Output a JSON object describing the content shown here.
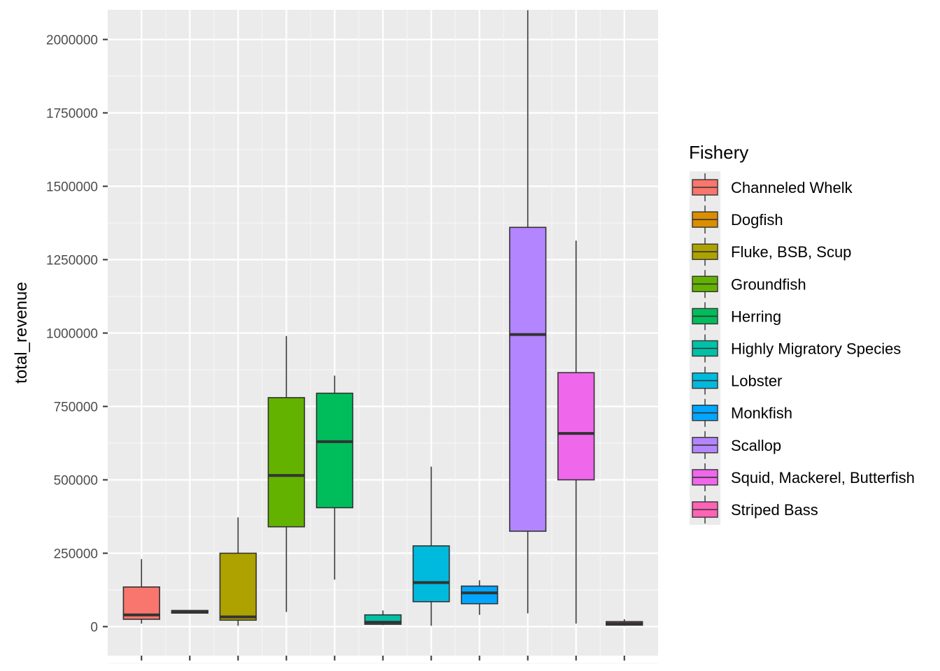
{
  "chart_data": {
    "type": "boxplot",
    "title": "",
    "xlabel": "",
    "ylabel": "total_revenue",
    "ylim": [
      -100000,
      2100000
    ],
    "yticks": [
      0,
      250000,
      500000,
      750000,
      1000000,
      1250000,
      1500000,
      1750000,
      2000000
    ],
    "ytick_labels": [
      "0",
      "250000",
      "500000",
      "750000",
      "1000000",
      "1250000",
      "1500000",
      "1750000",
      "2000000"
    ],
    "grid": true,
    "panel_background": "#ebebeb",
    "legend": {
      "title": "Fishery",
      "position": "right"
    },
    "series": [
      {
        "name": "Channeled Whelk",
        "color": "#f8766d",
        "whisker_low": 10000,
        "q1": 25000,
        "median": 40000,
        "q3": 135000,
        "whisker_high": 230000
      },
      {
        "name": "Dogfish",
        "color": "#db8e00",
        "whisker_low": 45000,
        "q1": 46000,
        "median": 50000,
        "q3": 55000,
        "whisker_high": 56000
      },
      {
        "name": "Fluke, BSB, Scup",
        "color": "#aea200",
        "whisker_low": 3000,
        "q1": 22000,
        "median": 33000,
        "q3": 250000,
        "whisker_high": 372000
      },
      {
        "name": "Groundfish",
        "color": "#64b200",
        "whisker_low": 50000,
        "q1": 340000,
        "median": 515000,
        "q3": 780000,
        "whisker_high": 990000
      },
      {
        "name": "Herring",
        "color": "#00bd5c",
        "whisker_low": 160000,
        "q1": 405000,
        "median": 630000,
        "q3": 795000,
        "whisker_high": 855000
      },
      {
        "name": "Highly Migratory Species",
        "color": "#00c1a7",
        "whisker_low": 5000,
        "q1": 8000,
        "median": 15000,
        "q3": 40000,
        "whisker_high": 55000
      },
      {
        "name": "Lobster",
        "color": "#00bade",
        "whisker_low": 3000,
        "q1": 85000,
        "median": 150000,
        "q3": 275000,
        "whisker_high": 545000
      },
      {
        "name": "Monkfish",
        "color": "#00a6ff",
        "whisker_low": 40000,
        "q1": 78000,
        "median": 115000,
        "q3": 138000,
        "whisker_high": 158000
      },
      {
        "name": "Scallop",
        "color": "#b385ff",
        "whisker_low": 45000,
        "q1": 325000,
        "median": 995000,
        "q3": 1360000,
        "whisker_high": 2100000
      },
      {
        "name": "Squid, Mackerel, Butterfish",
        "color": "#ef67eb",
        "whisker_low": 10000,
        "q1": 500000,
        "median": 658000,
        "q3": 865000,
        "whisker_high": 1315000
      },
      {
        "name": "Striped Bass",
        "color": "#ff63b6",
        "whisker_low": 3000,
        "q1": 5000,
        "median": 10000,
        "q3": 17000,
        "whisker_high": 25000
      }
    ]
  }
}
